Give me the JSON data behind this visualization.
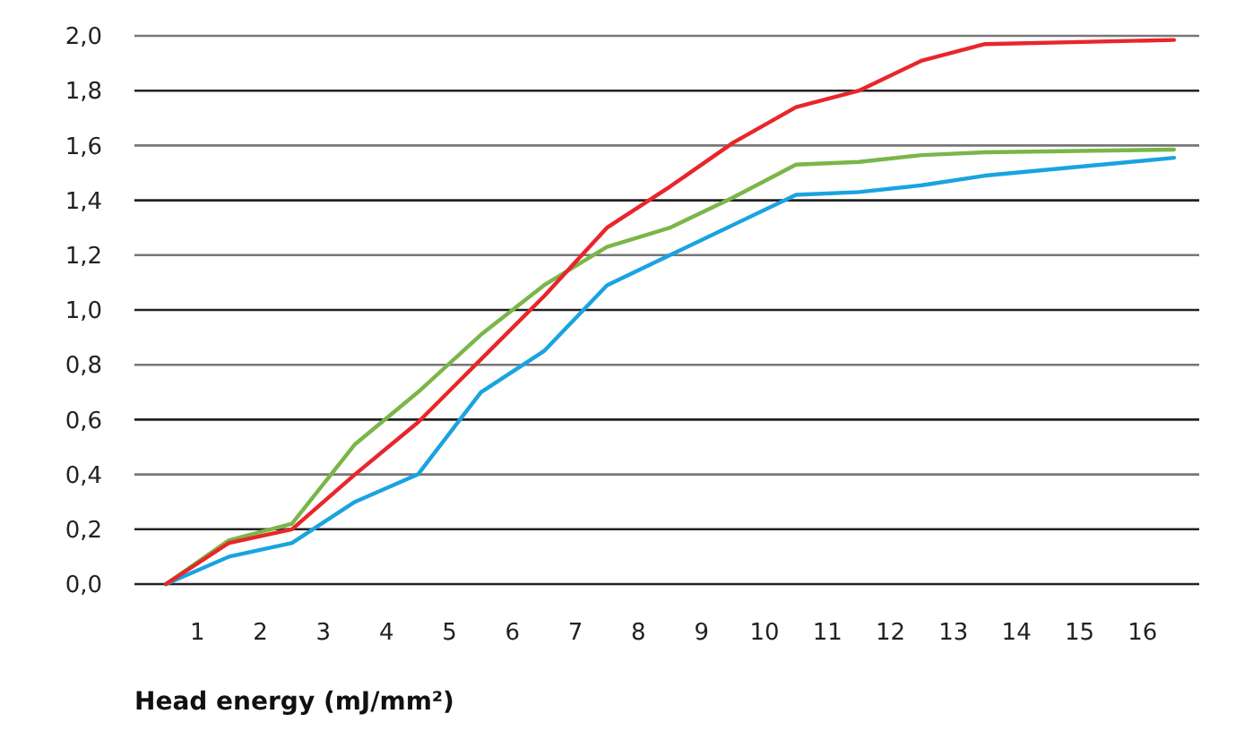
{
  "chart_data": {
    "type": "line",
    "xlabel": "Head energy (mJ/mm²)",
    "xlim": [
      0,
      16.9
    ],
    "xticks": [
      1,
      2,
      3,
      4,
      5,
      6,
      7,
      8,
      9,
      10,
      11,
      12,
      13,
      14,
      15,
      16
    ],
    "ylim": [
      0,
      2
    ],
    "yticks": [
      {
        "value": 0,
        "label": "0,0"
      },
      {
        "value": 0.2,
        "label": "0,2"
      },
      {
        "value": 0.4,
        "label": "0,4"
      },
      {
        "value": 0.6,
        "label": "0,6"
      },
      {
        "value": 0.8,
        "label": "0,8"
      },
      {
        "value": 1,
        "label": "1,0"
      },
      {
        "value": 1.2,
        "label": "1,2"
      },
      {
        "value": 1.4,
        "label": "1,4"
      },
      {
        "value": 1.6,
        "label": "1,6"
      },
      {
        "value": 1.8,
        "label": "1,8"
      },
      {
        "value": 2,
        "label": "2,0"
      }
    ],
    "grid": "y",
    "marker": "none",
    "line_style": "solid",
    "x": [
      0.5,
      1.5,
      2.5,
      3.5,
      4.5,
      5.5,
      6.5,
      7.5,
      8.5,
      9.5,
      10.5,
      11.5,
      12.5,
      13.5,
      16.5
    ],
    "series": [
      {
        "color": "#1aa3e0",
        "values": [
          0,
          0.1,
          0.15,
          0.3,
          0.4,
          0.7,
          0.85,
          1.09,
          1.2,
          1.31,
          1.42,
          1.43,
          1.455,
          1.49,
          1.555
        ]
      },
      {
        "color": "#7ab648",
        "values": [
          0,
          0.16,
          0.22,
          0.51,
          0.7,
          0.91,
          1.09,
          1.23,
          1.3,
          1.41,
          1.53,
          1.54,
          1.565,
          1.575,
          1.585
        ]
      },
      {
        "color": "#e8262b",
        "values": [
          0,
          0.15,
          0.2,
          0.4,
          0.59,
          0.82,
          1.05,
          1.3,
          1.45,
          1.61,
          1.74,
          1.8,
          1.91,
          1.97,
          1.985
        ]
      }
    ]
  }
}
